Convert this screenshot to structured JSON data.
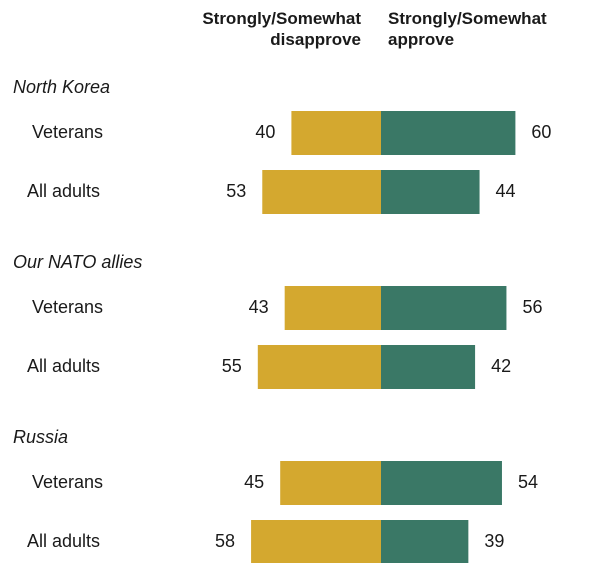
{
  "header": {
    "left_line1": "Strongly/Somewhat",
    "left_line2": "disapprove",
    "right_line1": "Strongly/Somewhat",
    "right_line2": "approve"
  },
  "colors": {
    "disapprove": "#d4a82f",
    "approve": "#3a7866"
  },
  "chart_data": {
    "type": "bar",
    "orientation": "horizontal-diverging",
    "series": [
      {
        "name": "Strongly/Somewhat disapprove",
        "color": "#d4a82f"
      },
      {
        "name": "Strongly/Somewhat approve",
        "color": "#3a7866"
      }
    ],
    "groups": [
      {
        "label": "North Korea",
        "rows": [
          {
            "label": "Veterans",
            "disapprove": 40,
            "approve": 60
          },
          {
            "label": "All adults",
            "disapprove": 53,
            "approve": 44
          }
        ]
      },
      {
        "label": "Our NATO allies",
        "rows": [
          {
            "label": "Veterans",
            "disapprove": 43,
            "approve": 56
          },
          {
            "label": "All adults",
            "disapprove": 55,
            "approve": 42
          }
        ]
      },
      {
        "label": "Russia",
        "rows": [
          {
            "label": "Veterans",
            "disapprove": 45,
            "approve": 54
          },
          {
            "label": "All adults",
            "disapprove": 58,
            "approve": 39
          }
        ]
      }
    ]
  }
}
